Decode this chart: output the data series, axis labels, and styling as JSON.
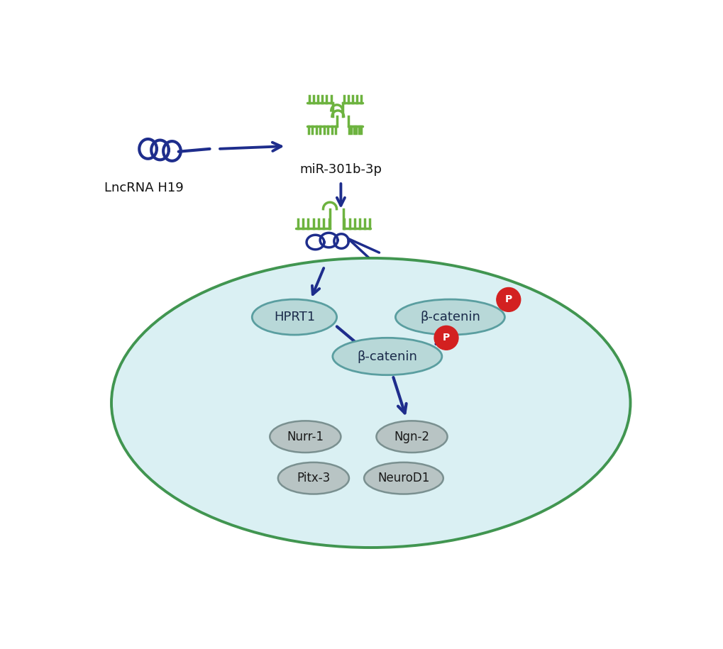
{
  "bg_color": "#ffffff",
  "dark_blue": "#1e2d8c",
  "green": "#6db33f",
  "teal_fill": "#b8d8d8",
  "teal_edge": "#5a9ea0",
  "cell_fill": "#d6eff2",
  "cell_edge": "#2e8b3e",
  "gray_fill": "#b8c4c4",
  "gray_edge": "#7a9090",
  "red_fill": "#d32020",
  "p_label": "P",
  "lncrna_label": "LncRNA H19",
  "mir_label": "miR-301b-3p",
  "hprt1_label": "HPRT1",
  "bcatenin_label": "β-catenin",
  "nurr1_label": "Nurr-1",
  "pitx3_label": "Pitx-3",
  "ngn2_label": "Ngn-2",
  "neurod1_label": "NeuroD1"
}
